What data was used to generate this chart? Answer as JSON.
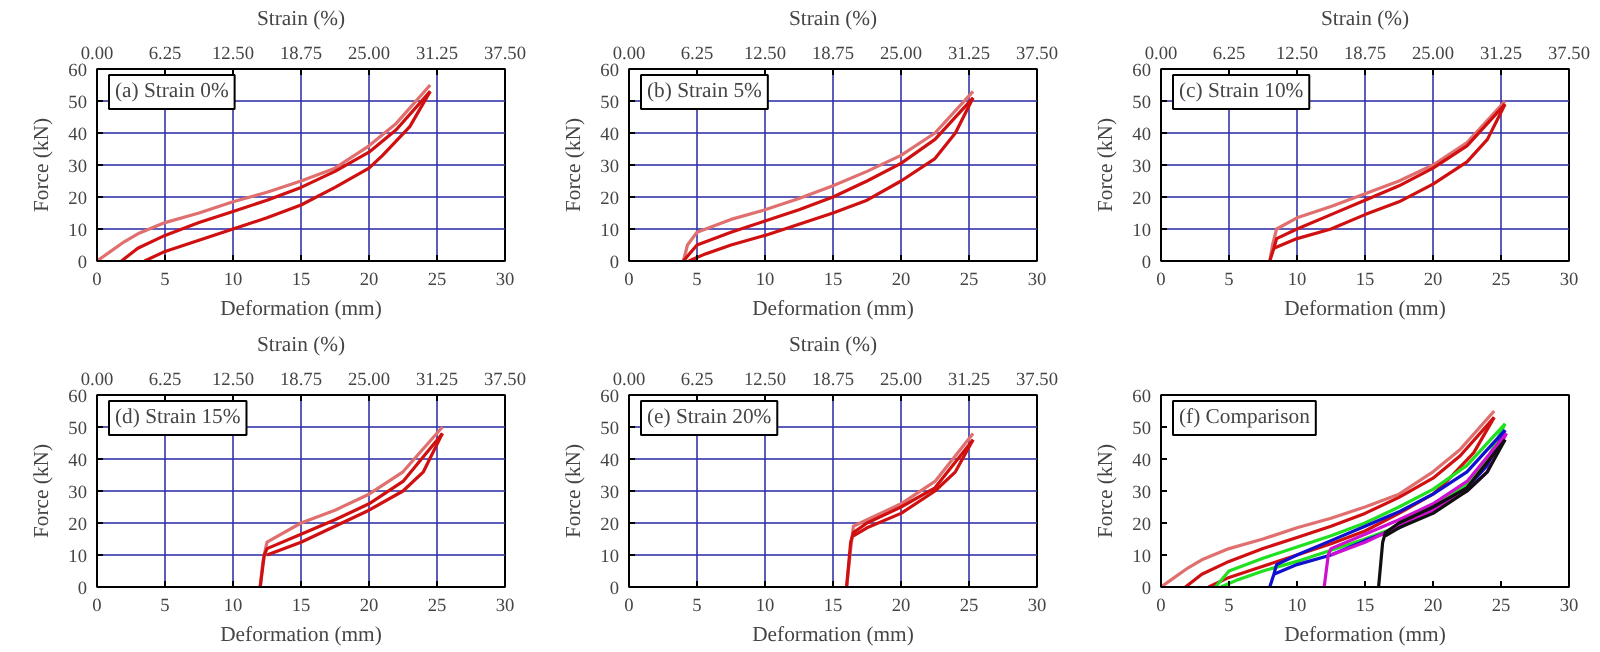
{
  "chart_data": [
    {
      "type": "line",
      "title": "(a) Strain 0%",
      "xlabel": "Deformation (mm)",
      "ylabel": "Force (kN)",
      "x2label": "Strain (%)",
      "xlim": [
        0,
        30
      ],
      "ylim": [
        0,
        60
      ],
      "xticks": [
        0,
        5,
        10,
        15,
        20,
        25,
        30
      ],
      "yticks": [
        0,
        10,
        20,
        30,
        40,
        50,
        60
      ],
      "x2lim": [
        0,
        37.5
      ],
      "x2ticks": [
        {
          "value": 0,
          "label": "0.00"
        },
        {
          "value": 6.25,
          "label": "6.25"
        },
        {
          "value": 12.5,
          "label": "12.50"
        },
        {
          "value": 18.75,
          "label": "18.75"
        },
        {
          "value": 25,
          "label": "25.00"
        },
        {
          "value": 31.25,
          "label": "31.25"
        },
        {
          "value": 37.5,
          "label": "37.50"
        }
      ],
      "grid": true,
      "marker": "none",
      "line_style": "solid",
      "series": [
        {
          "color": "#e07070",
          "x": [
            0,
            1,
            2,
            3,
            5,
            7.5,
            10,
            12.5,
            15,
            17.5,
            20,
            22,
            24.5
          ],
          "values": [
            0,
            3,
            6,
            8.5,
            12,
            15,
            18.5,
            21.5,
            25,
            29,
            36,
            43,
            55
          ]
        },
        {
          "color": "#d01010",
          "x": [
            1.8,
            3,
            5,
            7.5,
            10,
            12.5,
            15,
            17.5,
            20,
            22,
            24.5
          ],
          "values": [
            0,
            4,
            8,
            12,
            15.5,
            19,
            23,
            28,
            34,
            41,
            53
          ]
        },
        {
          "color": "#d01010",
          "x": [
            24.5,
            23,
            21,
            20,
            17.5,
            15,
            12.5,
            10,
            7.5,
            5,
            3.5
          ],
          "values": [
            53,
            42,
            33,
            29,
            23,
            17.5,
            13.5,
            10,
            6.5,
            3,
            0
          ]
        }
      ]
    },
    {
      "type": "line",
      "title": "(b) Strain 5%",
      "xlabel": "Deformation (mm)",
      "ylabel": "Force (kN)",
      "x2label": "Strain (%)",
      "xlim": [
        0,
        30
      ],
      "ylim": [
        0,
        60
      ],
      "xticks": [
        0,
        5,
        10,
        15,
        20,
        25,
        30
      ],
      "yticks": [
        0,
        10,
        20,
        30,
        40,
        50,
        60
      ],
      "x2lim": [
        0,
        37.5
      ],
      "x2ticks": [
        {
          "value": 0,
          "label": "0.00"
        },
        {
          "value": 6.25,
          "label": "6.25"
        },
        {
          "value": 12.5,
          "label": "12.50"
        },
        {
          "value": 18.75,
          "label": "18.75"
        },
        {
          "value": 25,
          "label": "25.00"
        },
        {
          "value": 31.25,
          "label": "31.25"
        },
        {
          "value": 37.5,
          "label": "37.50"
        }
      ],
      "grid": true,
      "marker": "none",
      "line_style": "solid",
      "series": [
        {
          "color": "#e07070",
          "x": [
            4,
            4.3,
            5,
            7.5,
            10,
            12.5,
            15,
            17.5,
            20,
            22.5,
            25.3
          ],
          "values": [
            0,
            5,
            9,
            13,
            16,
            19.5,
            23.5,
            28,
            33,
            40,
            53
          ]
        },
        {
          "color": "#d01010",
          "x": [
            4,
            5,
            7.5,
            10,
            12.5,
            15,
            17.5,
            20,
            22.5,
            25.3
          ],
          "values": [
            0,
            5,
            9,
            12.5,
            16,
            20,
            25,
            30.5,
            38,
            51
          ]
        },
        {
          "color": "#d01010",
          "x": [
            25.3,
            24,
            22.5,
            20,
            17.5,
            15,
            12.5,
            10,
            7.5,
            5.5,
            4.4
          ],
          "values": [
            51,
            40,
            32,
            25,
            19,
            15,
            11.5,
            8,
            5,
            2,
            0
          ]
        }
      ]
    },
    {
      "type": "line",
      "title": "(c) Strain 10%",
      "xlabel": "Deformation (mm)",
      "ylabel": "Force (kN)",
      "x2label": "Strain (%)",
      "xlim": [
        0,
        30
      ],
      "ylim": [
        0,
        60
      ],
      "xticks": [
        0,
        5,
        10,
        15,
        20,
        25,
        30
      ],
      "yticks": [
        0,
        10,
        20,
        30,
        40,
        50,
        60
      ],
      "x2lim": [
        0,
        37.5
      ],
      "x2ticks": [
        {
          "value": 0,
          "label": "0.00"
        },
        {
          "value": 6.25,
          "label": "6.25"
        },
        {
          "value": 12.5,
          "label": "12.50"
        },
        {
          "value": 18.75,
          "label": "18.75"
        },
        {
          "value": 25,
          "label": "25.00"
        },
        {
          "value": 31.25,
          "label": "31.25"
        },
        {
          "value": 37.5,
          "label": "37.50"
        }
      ],
      "grid": true,
      "marker": "none",
      "line_style": "solid",
      "series": [
        {
          "color": "#e07070",
          "x": [
            8,
            8.2,
            8.5,
            10,
            12.5,
            15,
            17.5,
            20,
            22.5,
            25.3
          ],
          "values": [
            0,
            5,
            10,
            13.5,
            17,
            21,
            25,
            30,
            37,
            50
          ]
        },
        {
          "color": "#d01010",
          "x": [
            8,
            8.3,
            8.5,
            10,
            12.5,
            15,
            17.5,
            20,
            22.5,
            25.3
          ],
          "values": [
            0,
            4,
            7,
            10,
            14.5,
            19,
            23.5,
            29,
            36,
            49
          ]
        },
        {
          "color": "#d01010",
          "x": [
            25.3,
            24,
            22.5,
            20,
            17.5,
            15,
            12.5,
            10,
            8.3
          ],
          "values": [
            49,
            38,
            31,
            24,
            18.5,
            14.5,
            10,
            7,
            4
          ]
        }
      ]
    },
    {
      "type": "line",
      "title": "(d) Strain 15%",
      "xlabel": "Deformation (mm)",
      "ylabel": "Force (kN)",
      "x2label": "Strain (%)",
      "xlim": [
        0,
        30
      ],
      "ylim": [
        0,
        60
      ],
      "xticks": [
        0,
        5,
        10,
        15,
        20,
        25,
        30
      ],
      "yticks": [
        0,
        10,
        20,
        30,
        40,
        50,
        60
      ],
      "x2lim": [
        0,
        37.5
      ],
      "x2ticks": [
        {
          "value": 0,
          "label": "0.00"
        },
        {
          "value": 6.25,
          "label": "6.25"
        },
        {
          "value": 12.5,
          "label": "12.50"
        },
        {
          "value": 18.75,
          "label": "18.75"
        },
        {
          "value": 25,
          "label": "25.00"
        },
        {
          "value": 31.25,
          "label": "31.25"
        },
        {
          "value": 37.5,
          "label": "37.50"
        }
      ],
      "grid": true,
      "marker": "none",
      "line_style": "solid",
      "series": [
        {
          "color": "#e07070",
          "x": [
            12,
            12.2,
            12.5,
            15,
            17.5,
            20,
            22.5,
            25.4
          ],
          "values": [
            0,
            8,
            14,
            20,
            24,
            29,
            36,
            50
          ]
        },
        {
          "color": "#d01010",
          "x": [
            12,
            12.3,
            12.5,
            15,
            17.5,
            20,
            22.5,
            25.4
          ],
          "values": [
            0,
            10,
            12,
            16.5,
            21,
            26,
            33,
            48
          ]
        },
        {
          "color": "#d01010",
          "x": [
            25.4,
            24,
            22.5,
            20,
            17.5,
            15,
            12.5
          ],
          "values": [
            48,
            36,
            30,
            24,
            19,
            14,
            10
          ]
        }
      ]
    },
    {
      "type": "line",
      "title": "(e) Strain 20%",
      "xlabel": "Deformation (mm)",
      "ylabel": "Force (kN)",
      "x2label": "Strain (%)",
      "xlim": [
        0,
        30
      ],
      "ylim": [
        0,
        60
      ],
      "xticks": [
        0,
        5,
        10,
        15,
        20,
        25,
        30
      ],
      "yticks": [
        0,
        10,
        20,
        30,
        40,
        50,
        60
      ],
      "x2lim": [
        0,
        37.5
      ],
      "x2ticks": [
        {
          "value": 0,
          "label": "0.00"
        },
        {
          "value": 6.25,
          "label": "6.25"
        },
        {
          "value": 12.5,
          "label": "12.50"
        },
        {
          "value": 18.75,
          "label": "18.75"
        },
        {
          "value": 25,
          "label": "25.00"
        },
        {
          "value": 31.25,
          "label": "31.25"
        },
        {
          "value": 37.5,
          "label": "37.50"
        }
      ],
      "grid": true,
      "marker": "none",
      "line_style": "solid",
      "series": [
        {
          "color": "#e07070",
          "x": [
            16,
            16.3,
            16.5,
            17.5,
            20,
            22.5,
            25.3
          ],
          "values": [
            0,
            12,
            19,
            21,
            26,
            33,
            48
          ]
        },
        {
          "color": "#d01010",
          "x": [
            16,
            16.3,
            16.5,
            17.5,
            20,
            22.5,
            25.3
          ],
          "values": [
            0,
            14,
            17,
            20,
            25,
            31,
            46
          ]
        },
        {
          "color": "#d01010",
          "x": [
            25.3,
            24,
            22.5,
            20,
            17.5,
            16.5
          ],
          "values": [
            46,
            36,
            30,
            23,
            18.5,
            16
          ]
        }
      ]
    },
    {
      "type": "line",
      "title": "(f) Comparison",
      "xlabel": "Deformation (mm)",
      "ylabel": "Force (kN)",
      "xlim": [
        0,
        30
      ],
      "ylim": [
        0,
        60
      ],
      "xticks": [
        0,
        5,
        10,
        15,
        20,
        25,
        30
      ],
      "yticks": [
        0,
        10,
        20,
        30,
        40,
        50,
        60
      ],
      "grid": false,
      "marker": "none",
      "line_style": "solid",
      "series": [
        {
          "color": "#e07070",
          "x": [
            0,
            1,
            2,
            3,
            5,
            7.5,
            10,
            12.5,
            15,
            17.5,
            20,
            22,
            24.5
          ],
          "values": [
            0,
            3,
            6,
            8.5,
            12,
            15,
            18.5,
            21.5,
            25,
            29,
            36,
            43,
            55
          ]
        },
        {
          "color": "#d01010",
          "x": [
            1.8,
            3,
            5,
            7.5,
            10,
            12.5,
            15,
            17.5,
            20,
            22,
            24.5
          ],
          "values": [
            0,
            4,
            8,
            12,
            15.5,
            19,
            23,
            28,
            34,
            41,
            53
          ]
        },
        {
          "color": "#d01010",
          "x": [
            24.5,
            23,
            21,
            20,
            17.5,
            15,
            12.5,
            10,
            7.5,
            5,
            3.5
          ],
          "values": [
            53,
            42,
            33,
            29,
            23,
            17.5,
            13.5,
            10,
            6.5,
            3,
            0
          ]
        },
        {
          "color": "#20e020",
          "x": [
            4,
            5,
            7.5,
            10,
            12.5,
            15,
            17.5,
            20,
            22.5,
            25.3
          ],
          "values": [
            0,
            5,
            9,
            12.5,
            16,
            20,
            25,
            30.5,
            38,
            51
          ]
        },
        {
          "color": "#20e020",
          "x": [
            25.3,
            24,
            22.5,
            20,
            17.5,
            15,
            12.5,
            10,
            7.5,
            5.5,
            4.4
          ],
          "values": [
            51,
            40,
            32,
            25,
            19,
            15,
            11.5,
            8,
            5,
            2,
            0
          ]
        },
        {
          "color": "#1010d0",
          "x": [
            8,
            8.3,
            8.5,
            10,
            12.5,
            15,
            17.5,
            20,
            22.5,
            25.3
          ],
          "values": [
            0,
            4,
            7,
            10,
            14.5,
            19,
            23.5,
            29,
            36,
            49
          ]
        },
        {
          "color": "#1010d0",
          "x": [
            25.3,
            24,
            22.5,
            20,
            17.5,
            15,
            12.5,
            10,
            8.3
          ],
          "values": [
            49,
            38,
            31,
            24,
            18.5,
            14.5,
            10,
            7,
            4
          ]
        },
        {
          "color": "#d010d0",
          "x": [
            12,
            12.3,
            12.5,
            15,
            17.5,
            20,
            22.5,
            25.4
          ],
          "values": [
            0,
            10,
            12,
            16.5,
            21,
            26,
            33,
            48
          ]
        },
        {
          "color": "#d010d0",
          "x": [
            25.4,
            24,
            22.5,
            20,
            17.5,
            15,
            12.5
          ],
          "values": [
            48,
            36,
            30,
            24,
            19,
            14,
            10
          ]
        },
        {
          "color": "#101010",
          "x": [
            16,
            16.3,
            16.5,
            17.5,
            20,
            22.5,
            25.3
          ],
          "values": [
            0,
            14,
            17,
            20,
            25,
            31,
            46
          ]
        },
        {
          "color": "#101010",
          "x": [
            25.3,
            24,
            22.5,
            20,
            17.5,
            16.5
          ],
          "values": [
            46,
            36,
            30,
            23,
            18.5,
            16
          ]
        }
      ]
    }
  ]
}
